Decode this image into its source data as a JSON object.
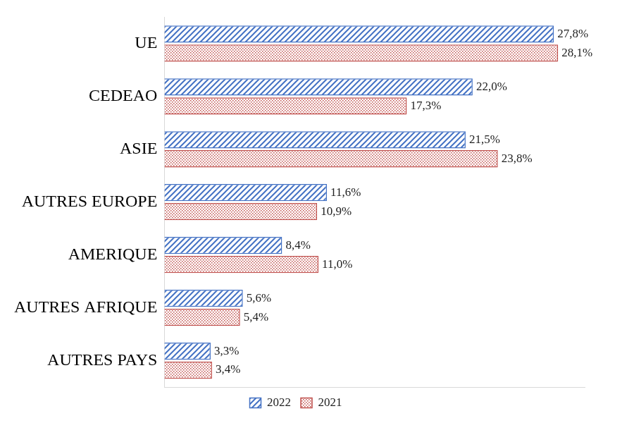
{
  "chart_data": {
    "type": "bar",
    "orientation": "horizontal",
    "categories": [
      "UE",
      "CEDEAO",
      "ASIE",
      "AUTRES EUROPE",
      "AMERIQUE",
      "AUTRES AFRIQUE",
      "AUTRES PAYS"
    ],
    "series": [
      {
        "name": "2022",
        "color": "#4472c4",
        "values": [
          27.8,
          22.0,
          21.5,
          11.6,
          8.4,
          5.6,
          3.3
        ],
        "value_labels": [
          "27,8%",
          "22,0%",
          "21,5%",
          "11,6%",
          "8,4%",
          "5,6%",
          "3,3%"
        ]
      },
      {
        "name": "2021",
        "color": "#c0504d",
        "values": [
          28.1,
          17.3,
          23.8,
          10.9,
          11.0,
          5.4,
          3.4
        ],
        "value_labels": [
          "28,1%",
          "17,3%",
          "23,8%",
          "10,9%",
          "11,0%",
          "5,4%",
          "3,4%"
        ]
      }
    ],
    "xlim": [
      0,
      30
    ],
    "grid": false,
    "legend": "bottom",
    "data_labels": true,
    "tick_labels": "y"
  }
}
